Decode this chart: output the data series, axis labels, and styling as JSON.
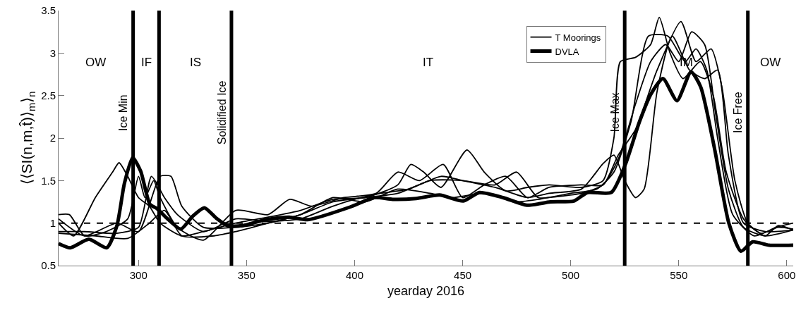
{
  "chart_data": {
    "type": "line",
    "xlabel": "yearday 2016",
    "ylabel": "⟨⟨SI(n,m,t̂)⟩$_{m}$⟩$_{n}$",
    "xlim": [
      263,
      603
    ],
    "xticks": [
      300,
      350,
      400,
      450,
      500,
      550,
      600
    ],
    "ylim": [
      0.5,
      3.5
    ],
    "yticks": [
      {
        "value": 0.5,
        "label": "0.5"
      },
      1,
      {
        "value": 1.5,
        "label": "1.5"
      },
      2,
      {
        "value": 2.5,
        "label": "2.5"
      },
      3,
      {
        "value": 3.5,
        "label": "3.5"
      }
    ],
    "grid": false,
    "legend": "top right",
    "line_style": "solid",
    "marker": "none",
    "ref_lines": [
      {
        "axis": "y",
        "value": 1,
        "label": null,
        "color": "#000000",
        "line_style": "dashed"
      },
      {
        "axis": "x",
        "value": 297.5,
        "label": "Ice Min",
        "color": "#000000",
        "line_style": "solid"
      },
      {
        "axis": "x",
        "value": 309.5,
        "label": null,
        "color": "#000000",
        "line_style": "solid"
      },
      {
        "axis": "x",
        "value": 343,
        "label": "Solidified Ice",
        "color": "#000000",
        "line_style": "solid"
      },
      {
        "axis": "x",
        "value": 525,
        "label": "Ice Max",
        "color": "#000000",
        "line_style": "solid"
      },
      {
        "axis": "x",
        "value": 582,
        "label": "Ice Free",
        "color": "#000000",
        "line_style": "solid"
      }
    ],
    "annotations": [
      "OW",
      "IF",
      "IS",
      "IT",
      "IM",
      "OW"
    ],
    "series": [
      {
        "name": "T Moorings",
        "color": "#000000",
        "x": [
          263,
          270,
          280,
          288,
          291,
          295,
          300,
          305,
          310,
          320,
          330,
          345,
          360,
          375,
          390,
          405,
          420,
          426,
          432,
          440,
          452,
          460,
          470,
          480,
          490,
          505,
          515,
          520,
          523,
          530,
          537,
          541,
          546,
          552,
          560,
          566,
          572,
          580,
          588,
          596,
          603
        ],
        "values": [
          1.0,
          0.85,
          1.3,
          1.6,
          1.71,
          1.55,
          1.3,
          1.2,
          1.0,
          0.85,
          0.9,
          1.0,
          1.07,
          1.15,
          1.28,
          1.3,
          1.45,
          1.69,
          1.6,
          1.42,
          1.86,
          1.6,
          1.38,
          1.42,
          1.45,
          1.42,
          1.5,
          2.0,
          2.9,
          2.95,
          3.1,
          3.42,
          3.0,
          2.7,
          2.9,
          2.5,
          1.6,
          1.05,
          0.88,
          0.95,
          0.93
        ]
      },
      {
        "color": "#000000",
        "x": [
          263,
          268,
          275,
          285,
          295,
          300,
          303,
          307,
          310,
          318,
          330,
          345,
          360,
          370,
          380,
          395,
          410,
          420,
          430,
          441,
          450,
          460,
          470,
          480,
          490,
          505,
          515,
          522,
          530,
          540,
          551,
          558,
          565,
          570,
          576,
          582,
          590,
          596,
          603
        ],
        "values": [
          1.1,
          1.1,
          0.85,
          0.9,
          1.05,
          1.55,
          1.3,
          1.5,
          1.3,
          0.95,
          0.8,
          1.15,
          1.1,
          1.28,
          1.2,
          1.3,
          1.35,
          1.6,
          1.5,
          1.69,
          1.3,
          1.45,
          1.55,
          1.3,
          1.42,
          1.45,
          1.45,
          1.8,
          2.1,
          2.8,
          3.37,
          2.9,
          3.05,
          2.6,
          1.5,
          1.0,
          0.85,
          0.97,
          0.92
        ]
      },
      {
        "color": "#000000",
        "x": [
          263,
          275,
          290,
          300,
          306,
          312,
          318,
          330,
          345,
          360,
          375,
          390,
          400,
          412,
          425,
          440,
          450,
          465,
          480,
          490,
          505,
          515,
          520,
          525,
          530,
          534,
          540,
          547,
          555,
          562,
          568,
          573,
          580,
          590,
          603
        ],
        "values": [
          0.9,
          0.9,
          0.88,
          0.95,
          1.55,
          1.3,
          1.1,
          0.9,
          1.05,
          1.02,
          1.05,
          1.2,
          1.28,
          1.35,
          1.4,
          1.55,
          1.5,
          1.42,
          1.3,
          1.35,
          1.4,
          1.7,
          1.8,
          1.5,
          1.3,
          1.4,
          2.55,
          3.2,
          2.8,
          2.7,
          2.8,
          1.8,
          1.0,
          0.9,
          0.92
        ]
      },
      {
        "color": "#000000",
        "x": [
          263,
          275,
          290,
          300,
          310,
          315,
          320,
          330,
          345,
          360,
          375,
          390,
          405,
          420,
          435,
          450,
          465,
          475,
          485,
          500,
          512,
          520,
          528,
          536,
          545,
          553,
          558,
          563,
          568,
          575,
          585,
          595,
          603
        ],
        "values": [
          1.05,
          0.85,
          1.0,
          0.9,
          1.55,
          1.55,
          1.2,
          0.95,
          0.95,
          1.0,
          1.1,
          1.25,
          1.3,
          1.35,
          1.5,
          1.5,
          1.45,
          1.6,
          1.3,
          1.35,
          1.4,
          1.6,
          2.2,
          3.2,
          3.2,
          2.9,
          3.05,
          2.8,
          2.0,
          1.1,
          0.85,
          0.95,
          1.0
        ]
      },
      {
        "color": "#000000",
        "x": [
          263,
          280,
          295,
          305,
          312,
          320,
          335,
          345,
          360,
          375,
          390,
          405,
          420,
          435,
          445,
          460,
          475,
          490,
          505,
          515,
          522,
          530,
          537,
          544,
          550,
          556,
          562,
          567,
          573,
          580,
          590,
          603
        ],
        "values": [
          0.88,
          0.85,
          0.82,
          1.0,
          1.15,
          0.85,
          0.85,
          0.9,
          1.0,
          1.1,
          1.3,
          1.25,
          1.4,
          1.35,
          1.3,
          1.35,
          1.25,
          1.3,
          1.35,
          1.45,
          1.75,
          2.4,
          2.9,
          3.1,
          2.9,
          3.25,
          3.1,
          2.3,
          1.4,
          0.95,
          0.85,
          0.92
        ]
      },
      {
        "name": "DVLA",
        "color": "#000000",
        "x": [
          263,
          268.4,
          277,
          285.3,
          290,
          293.5,
          297.3,
          301,
          305.3,
          308.6,
          313,
          319.6,
          325,
          330.5,
          335.9,
          341.3,
          347.8,
          358.8,
          369.7,
          378.3,
          398,
          409,
          417.6,
          428.5,
          439.3,
          450.3,
          457.8,
          468.7,
          479.7,
          490.6,
          501.5,
          507.8,
          518.8,
          525.3,
          531.8,
          537.2,
          542.7,
          549.2,
          555.7,
          560.2,
          566.7,
          573.2,
          578.8,
          584.2,
          591.8,
          603
        ],
        "values": [
          0.76,
          0.71,
          0.81,
          0.71,
          0.97,
          1.47,
          1.77,
          1.61,
          1.22,
          1.17,
          1.06,
          0.93,
          1.08,
          1.18,
          1.06,
          0.97,
          0.97,
          1.04,
          1.07,
          1.04,
          1.19,
          1.3,
          1.28,
          1.29,
          1.33,
          1.26,
          1.36,
          1.3,
          1.21,
          1.25,
          1.26,
          1.36,
          1.36,
          1.69,
          2.19,
          2.52,
          2.7,
          2.44,
          2.78,
          2.6,
          1.86,
          1.0,
          0.67,
          0.78,
          0.74,
          0.74
        ]
      }
    ]
  }
}
